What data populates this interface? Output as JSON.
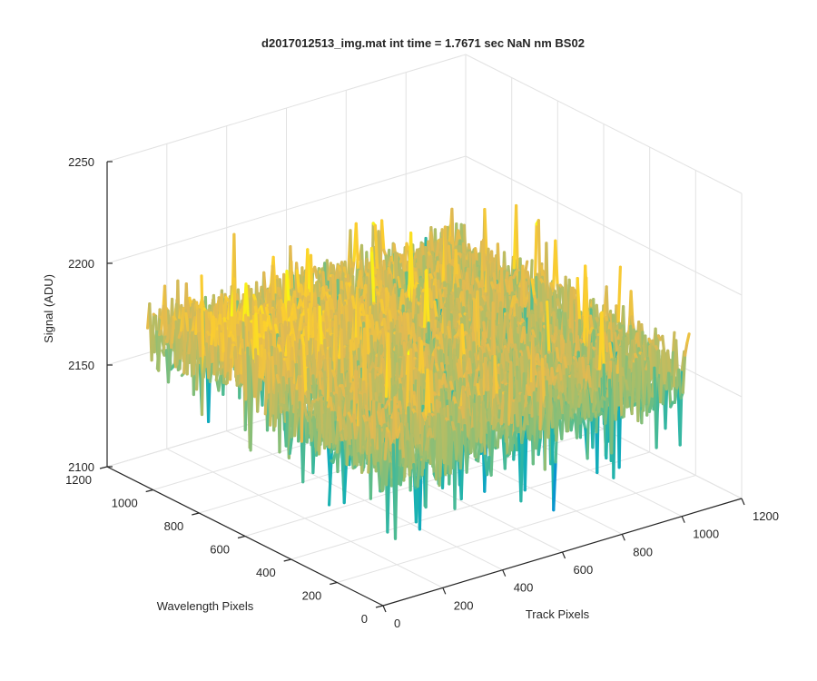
{
  "chart_data": {
    "type": "surface",
    "title": "d2017012513_img.mat int time = 1.7671 sec  NaN nm BS02",
    "xlabel": "Track Pixels",
    "ylabel": "Wavelength Pixels",
    "zlabel": "Signal (ADU)",
    "xlim": [
      0,
      1200
    ],
    "ylim": [
      0,
      1200
    ],
    "zlim": [
      2100,
      2250
    ],
    "xticks": [
      "0",
      "200",
      "400",
      "600",
      "800",
      "1000",
      "1200"
    ],
    "yticks": [
      "0",
      "200",
      "400",
      "600",
      "800",
      "1000",
      "1200"
    ],
    "zticks": [
      "2100",
      "2150",
      "2200",
      "2250"
    ],
    "grid": true,
    "colormap": "parula",
    "surface_extent": {
      "x": [
        0,
        1024
      ],
      "y": [
        0,
        1024
      ]
    },
    "mean_level": 2170,
    "noise_range": [
      2120,
      2215
    ]
  }
}
